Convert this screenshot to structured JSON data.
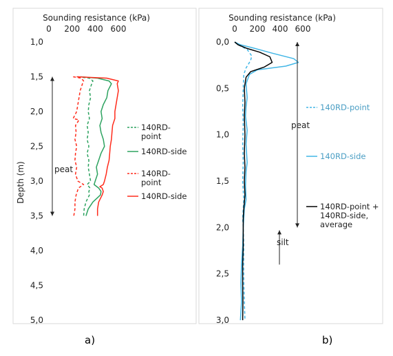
{
  "figure": {
    "captions": [
      "a)",
      "b)"
    ]
  },
  "chart_data": [
    {
      "type": "line",
      "panel": "a)",
      "title": "",
      "xlabel": "Sounding resistance (kPa)",
      "ylabel": "Depth (m)",
      "x_axis_position": "top",
      "y_inverted": true,
      "xlim": [
        0,
        600
      ],
      "ylim": [
        1.0,
        5.0
      ],
      "x_ticks": [
        0,
        200,
        400,
        600
      ],
      "y_ticks": [
        "1,0",
        "1,5",
        "2,0",
        "2,5",
        "3,0",
        "3,5",
        "4,0",
        "4,5",
        "5,0"
      ],
      "grid": false,
      "legend_position": "right",
      "annotations": [
        {
          "text": "peat",
          "type": "double-arrow",
          "depth_from": 1.5,
          "depth_to": 3.5,
          "x": -140
        }
      ],
      "series": [
        {
          "name": "140RD-point",
          "color": "#2ca25f",
          "dash": true,
          "points": [
            [
              250,
              1.5
            ],
            [
              350,
              1.52
            ],
            [
              380,
              1.56
            ],
            [
              370,
              1.6
            ],
            [
              350,
              1.7
            ],
            [
              360,
              1.8
            ],
            [
              345,
              1.9
            ],
            [
              340,
              2.0
            ],
            [
              350,
              2.1
            ],
            [
              330,
              2.2
            ],
            [
              340,
              2.3
            ],
            [
              330,
              2.4
            ],
            [
              345,
              2.5
            ],
            [
              330,
              2.6
            ],
            [
              345,
              2.7
            ],
            [
              340,
              2.8
            ],
            [
              350,
              2.9
            ],
            [
              360,
              3.0
            ],
            [
              330,
              3.05
            ],
            [
              355,
              3.1
            ],
            [
              345,
              3.15
            ],
            [
              350,
              3.2
            ],
            [
              320,
              3.3
            ],
            [
              305,
              3.4
            ],
            [
              300,
              3.5
            ]
          ]
        },
        {
          "name": "140RD-side",
          "color": "#2ca25f",
          "dash": false,
          "points": [
            [
              270,
              1.5
            ],
            [
              420,
              1.52
            ],
            [
              520,
              1.56
            ],
            [
              540,
              1.6
            ],
            [
              510,
              1.7
            ],
            [
              500,
              1.8
            ],
            [
              470,
              1.9
            ],
            [
              450,
              2.0
            ],
            [
              460,
              2.1
            ],
            [
              440,
              2.2
            ],
            [
              450,
              2.3
            ],
            [
              470,
              2.4
            ],
            [
              480,
              2.5
            ],
            [
              450,
              2.6
            ],
            [
              430,
              2.7
            ],
            [
              410,
              2.8
            ],
            [
              420,
              2.9
            ],
            [
              400,
              3.0
            ],
            [
              390,
              3.05
            ],
            [
              430,
              3.1
            ],
            [
              450,
              3.15
            ],
            [
              445,
              3.2
            ],
            [
              380,
              3.3
            ],
            [
              340,
              3.4
            ],
            [
              320,
              3.5
            ]
          ]
        },
        {
          "name": "140RD-point",
          "color": "#ff2a1a",
          "dash": true,
          "points": [
            [
              210,
              1.5
            ],
            [
              280,
              1.52
            ],
            [
              300,
              1.56
            ],
            [
              290,
              1.6
            ],
            [
              270,
              1.7
            ],
            [
              260,
              1.8
            ],
            [
              250,
              1.9
            ],
            [
              240,
              2.0
            ],
            [
              210,
              2.1
            ],
            [
              260,
              2.12
            ],
            [
              230,
              2.2
            ],
            [
              235,
              2.3
            ],
            [
              225,
              2.4
            ],
            [
              240,
              2.5
            ],
            [
              230,
              2.6
            ],
            [
              225,
              2.7
            ],
            [
              240,
              2.8
            ],
            [
              230,
              2.9
            ],
            [
              250,
              3.0
            ],
            [
              300,
              3.05
            ],
            [
              255,
              3.1
            ],
            [
              235,
              3.2
            ],
            [
              225,
              3.3
            ],
            [
              225,
              3.4
            ],
            [
              215,
              3.5
            ]
          ]
        },
        {
          "name": "140RD-side",
          "color": "#ff2a1a",
          "dash": false,
          "points": [
            [
              240,
              1.5
            ],
            [
              500,
              1.52
            ],
            [
              600,
              1.56
            ],
            [
              590,
              1.6
            ],
            [
              600,
              1.7
            ],
            [
              590,
              1.8
            ],
            [
              580,
              1.9
            ],
            [
              570,
              2.0
            ],
            [
              570,
              2.1
            ],
            [
              550,
              2.2
            ],
            [
              545,
              2.3
            ],
            [
              540,
              2.4
            ],
            [
              530,
              2.5
            ],
            [
              525,
              2.6
            ],
            [
              520,
              2.7
            ],
            [
              505,
              2.8
            ],
            [
              495,
              2.9
            ],
            [
              480,
              3.0
            ],
            [
              470,
              3.05
            ],
            [
              440,
              3.08
            ],
            [
              460,
              3.1
            ],
            [
              470,
              3.15
            ],
            [
              460,
              3.2
            ],
            [
              430,
              3.3
            ],
            [
              420,
              3.4
            ],
            [
              420,
              3.5
            ]
          ]
        }
      ]
    },
    {
      "type": "line",
      "panel": "b)",
      "title": "",
      "xlabel": "Sounding resistance (kPa)",
      "ylabel": "",
      "x_axis_position": "top",
      "y_inverted": true,
      "xlim": [
        0,
        600
      ],
      "ylim": [
        0.0,
        3.0
      ],
      "x_ticks": [
        0,
        200,
        400,
        600
      ],
      "y_ticks": [
        "0,0",
        "0,5",
        "1,0",
        "1,5",
        "2,0",
        "2,5",
        "3,0"
      ],
      "grid": false,
      "legend_position": "right",
      "annotations": [
        {
          "text": "peat",
          "type": "double-arrow",
          "depth_from": 0.0,
          "depth_to": 2.0
        },
        {
          "text": "silt",
          "type": "up-arrow",
          "depth_from": 2.4,
          "depth_to": 2.03
        }
      ],
      "series": [
        {
          "name": "140RD-point",
          "color": "#41b6e6",
          "dash": true,
          "points": [
            [
              0,
              0.0
            ],
            [
              20,
              0.02
            ],
            [
              60,
              0.05
            ],
            [
              110,
              0.08
            ],
            [
              150,
              0.15
            ],
            [
              140,
              0.2
            ],
            [
              100,
              0.28
            ],
            [
              80,
              0.35
            ],
            [
              75,
              0.5
            ],
            [
              70,
              0.7
            ],
            [
              75,
              0.9
            ],
            [
              70,
              1.1
            ],
            [
              75,
              1.3
            ],
            [
              70,
              1.5
            ],
            [
              80,
              1.7
            ],
            [
              75,
              1.8
            ],
            [
              70,
              1.9
            ],
            [
              75,
              2.0
            ],
            [
              80,
              2.2
            ],
            [
              78,
              2.4
            ],
            [
              80,
              2.6
            ],
            [
              85,
              2.8
            ],
            [
              90,
              3.0
            ]
          ]
        },
        {
          "name": "140RD-side",
          "color": "#41b6e6",
          "dash": false,
          "points": [
            [
              0,
              0.0
            ],
            [
              50,
              0.03
            ],
            [
              150,
              0.06
            ],
            [
              330,
              0.12
            ],
            [
              520,
              0.18
            ],
            [
              560,
              0.22
            ],
            [
              450,
              0.26
            ],
            [
              200,
              0.3
            ],
            [
              130,
              0.35
            ],
            [
              100,
              0.45
            ],
            [
              110,
              0.6
            ],
            [
              100,
              0.7
            ],
            [
              95,
              0.8
            ],
            [
              110,
              0.95
            ],
            [
              100,
              1.1
            ],
            [
              110,
              1.3
            ],
            [
              100,
              1.4
            ],
            [
              95,
              1.55
            ],
            [
              100,
              1.7
            ],
            [
              85,
              1.8
            ],
            [
              80,
              1.9
            ],
            [
              75,
              2.0
            ],
            [
              70,
              2.2
            ],
            [
              60,
              2.4
            ],
            [
              55,
              2.6
            ],
            [
              60,
              2.8
            ],
            [
              50,
              3.0
            ]
          ]
        },
        {
          "name": "140RD-point + 140RD-side, average",
          "color": "#000000",
          "dash": false,
          "points": [
            [
              0,
              0.0
            ],
            [
              30,
              0.03
            ],
            [
              110,
              0.07
            ],
            [
              220,
              0.11
            ],
            [
              310,
              0.16
            ],
            [
              330,
              0.22
            ],
            [
              260,
              0.27
            ],
            [
              140,
              0.32
            ],
            [
              100,
              0.38
            ],
            [
              85,
              0.5
            ],
            [
              90,
              0.65
            ],
            [
              85,
              0.8
            ],
            [
              90,
              1.0
            ],
            [
              85,
              1.2
            ],
            [
              90,
              1.35
            ],
            [
              85,
              1.5
            ],
            [
              90,
              1.65
            ],
            [
              80,
              1.8
            ],
            [
              75,
              1.9
            ],
            [
              75,
              2.0
            ],
            [
              75,
              2.2
            ],
            [
              70,
              2.4
            ],
            [
              70,
              2.6
            ],
            [
              72,
              2.8
            ],
            [
              70,
              3.0
            ]
          ]
        }
      ]
    }
  ]
}
